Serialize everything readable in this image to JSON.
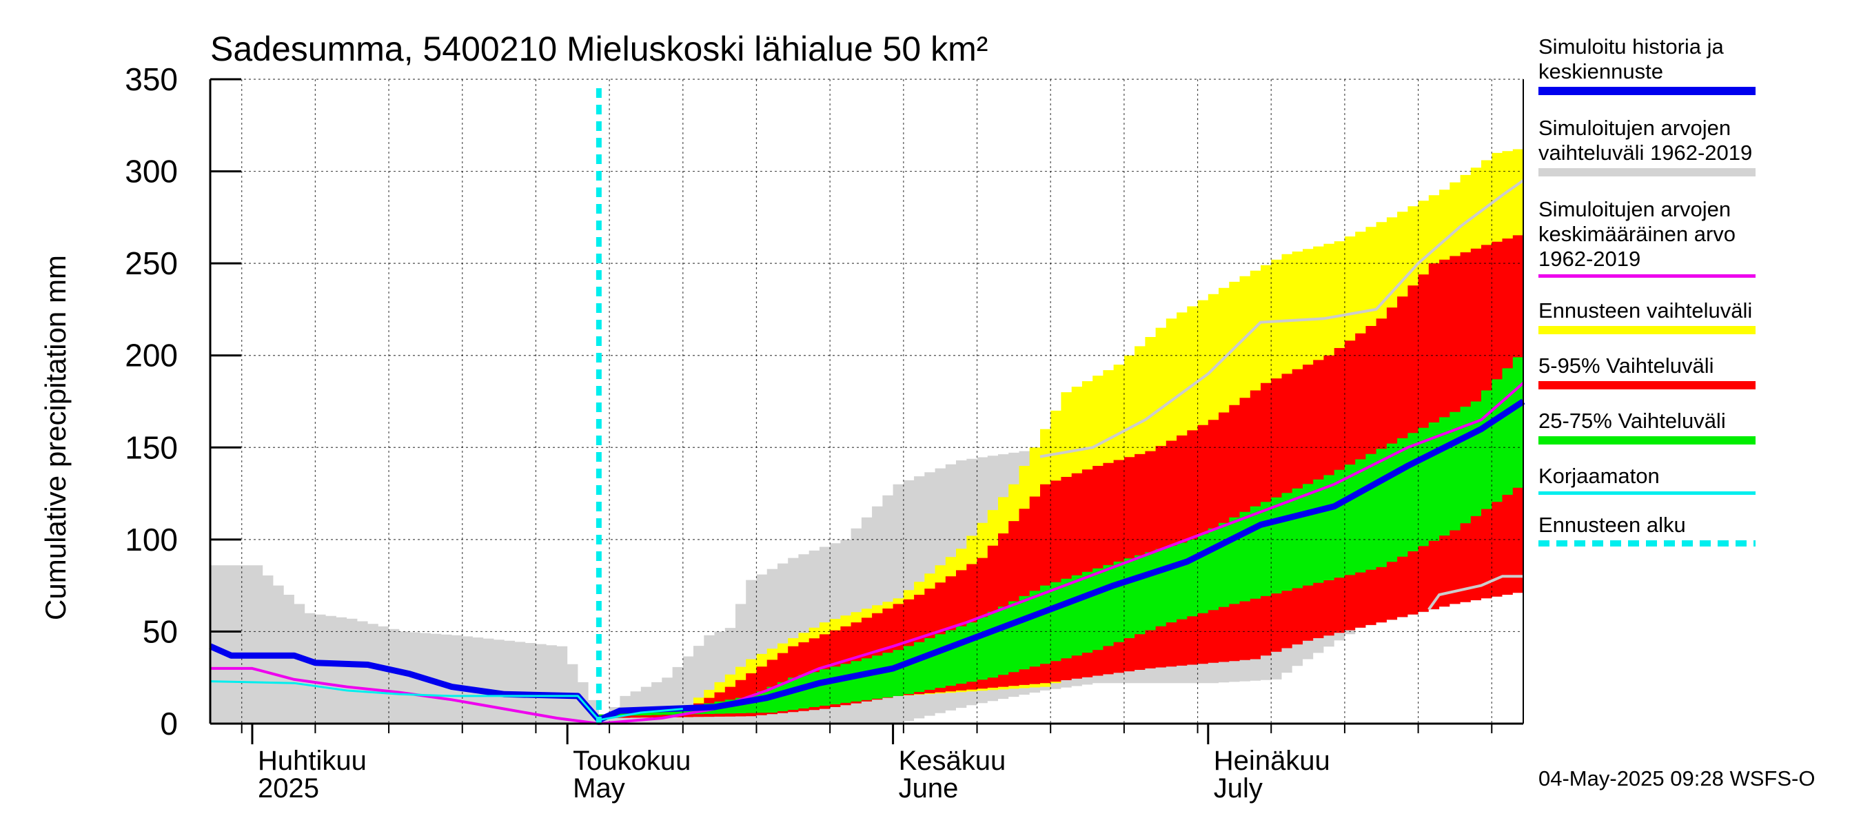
{
  "chart_data": {
    "type": "area",
    "title": "Sadesumma, 5400210 Mieluskoski lähialue 50 km²",
    "ylabel": "Cumulative precipitation   mm",
    "xlabel": "",
    "ylim": [
      0,
      350
    ],
    "yticks": [
      0,
      50,
      100,
      150,
      200,
      250,
      300,
      350
    ],
    "xlim": [
      "2025-03-28",
      "2025-07-31"
    ],
    "month_labels": [
      {
        "fi": "Huhtikuu",
        "en": "2025",
        "date": "2025-04-01"
      },
      {
        "fi": "Toukokuu",
        "en": "May",
        "date": "2025-05-01"
      },
      {
        "fi": "Kesäkuu",
        "en": "June",
        "date": "2025-06-01"
      },
      {
        "fi": "Heinäkuu",
        "en": "July",
        "date": "2025-07-01"
      }
    ],
    "forecast_start": "2025-05-04",
    "grid": true,
    "legend_position": "right",
    "series": [
      {
        "name": "Simuloitujen arvojen vaihteluväli 1962-2019",
        "kind": "band",
        "color": "#d3d3d3",
        "lower": [
          [
            "2025-03-28",
            0
          ],
          [
            "2025-05-04",
            0
          ],
          [
            "2025-06-01",
            0
          ],
          [
            "2025-06-08",
            10
          ],
          [
            "2025-06-15",
            18
          ],
          [
            "2025-06-20",
            22
          ],
          [
            "2025-07-01",
            22
          ],
          [
            "2025-07-07",
            24
          ],
          [
            "2025-07-10",
            35
          ],
          [
            "2025-07-15",
            52
          ],
          [
            "2025-07-22",
            62
          ],
          [
            "2025-07-23",
            70
          ],
          [
            "2025-07-31",
            72
          ]
        ],
        "upper": [
          [
            "2025-03-28",
            86
          ],
          [
            "2025-04-01",
            86
          ],
          [
            "2025-04-03",
            75
          ],
          [
            "2025-04-06",
            60
          ],
          [
            "2025-04-10",
            57
          ],
          [
            "2025-04-15",
            50
          ],
          [
            "2025-04-20",
            48
          ],
          [
            "2025-04-25",
            45
          ],
          [
            "2025-04-30",
            42
          ],
          [
            "2025-05-04",
            3
          ],
          [
            "2025-05-06",
            15
          ],
          [
            "2025-05-10",
            25
          ],
          [
            "2025-05-14",
            48
          ],
          [
            "2025-05-16",
            52
          ],
          [
            "2025-05-18",
            78
          ],
          [
            "2025-05-22",
            90
          ],
          [
            "2025-05-27",
            100
          ],
          [
            "2025-06-01",
            130
          ],
          [
            "2025-06-07",
            143
          ],
          [
            "2025-06-13",
            148
          ],
          [
            "2025-06-20",
            150
          ],
          [
            "2025-06-27",
            165
          ],
          [
            "2025-07-03",
            205
          ],
          [
            "2025-07-08",
            220
          ],
          [
            "2025-07-12",
            222
          ],
          [
            "2025-07-17",
            225
          ],
          [
            "2025-07-21",
            250
          ],
          [
            "2025-07-25",
            275
          ],
          [
            "2025-07-29",
            290
          ],
          [
            "2025-07-31",
            295
          ]
        ]
      },
      {
        "name": "Ennusteen vaihteluväli",
        "kind": "band",
        "color": "#ffff00",
        "lower": [
          [
            "2025-05-04",
            3
          ],
          [
            "2025-05-15",
            4
          ],
          [
            "2025-05-25",
            10
          ],
          [
            "2025-06-01",
            15
          ],
          [
            "2025-06-15",
            20
          ],
          [
            "2025-06-25",
            40
          ],
          [
            "2025-07-05",
            40
          ],
          [
            "2025-07-10",
            50
          ],
          [
            "2025-07-15",
            55
          ],
          [
            "2025-07-20",
            62
          ],
          [
            "2025-07-25",
            68
          ],
          [
            "2025-07-31",
            75
          ]
        ],
        "upper": [
          [
            "2025-05-04",
            5
          ],
          [
            "2025-05-12",
            10
          ],
          [
            "2025-05-18",
            35
          ],
          [
            "2025-05-25",
            55
          ],
          [
            "2025-06-01",
            68
          ],
          [
            "2025-06-07",
            95
          ],
          [
            "2025-06-12",
            130
          ],
          [
            "2025-06-17",
            180
          ],
          [
            "2025-06-22",
            195
          ],
          [
            "2025-06-27",
            220
          ],
          [
            "2025-07-03",
            240
          ],
          [
            "2025-07-08",
            255
          ],
          [
            "2025-07-13",
            262
          ],
          [
            "2025-07-18",
            275
          ],
          [
            "2025-07-23",
            290
          ],
          [
            "2025-07-28",
            310
          ],
          [
            "2025-07-31",
            313
          ]
        ]
      },
      {
        "name": "5-95% Vaihteluväli",
        "kind": "band",
        "color": "#ff0000",
        "lower": [
          [
            "2025-05-04",
            3
          ],
          [
            "2025-05-18",
            4
          ],
          [
            "2025-05-25",
            8
          ],
          [
            "2025-06-01",
            15
          ],
          [
            "2025-06-15",
            22
          ],
          [
            "2025-06-25",
            30
          ],
          [
            "2025-07-05",
            35
          ],
          [
            "2025-07-10",
            45
          ],
          [
            "2025-07-17",
            55
          ],
          [
            "2025-07-24",
            65
          ],
          [
            "2025-07-31",
            72
          ]
        ],
        "upper": [
          [
            "2025-05-04",
            4
          ],
          [
            "2025-05-12",
            8
          ],
          [
            "2025-05-16",
            20
          ],
          [
            "2025-05-22",
            42
          ],
          [
            "2025-05-28",
            55
          ],
          [
            "2025-06-03",
            70
          ],
          [
            "2025-06-09",
            90
          ],
          [
            "2025-06-15",
            130
          ],
          [
            "2025-06-20",
            140
          ],
          [
            "2025-06-25",
            148
          ],
          [
            "2025-07-01",
            165
          ],
          [
            "2025-07-06",
            185
          ],
          [
            "2025-07-12",
            200
          ],
          [
            "2025-07-17",
            220
          ],
          [
            "2025-07-22",
            250
          ],
          [
            "2025-07-27",
            260
          ],
          [
            "2025-07-31",
            267
          ]
        ]
      },
      {
        "name": "25-75% Vaihteluväli",
        "kind": "band",
        "color": "#00ee00",
        "lower": [
          [
            "2025-05-04",
            4
          ],
          [
            "2025-05-20",
            6
          ],
          [
            "2025-06-01",
            15
          ],
          [
            "2025-06-10",
            25
          ],
          [
            "2025-06-20",
            40
          ],
          [
            "2025-06-27",
            55
          ],
          [
            "2025-07-03",
            65
          ],
          [
            "2025-07-10",
            75
          ],
          [
            "2025-07-17",
            85
          ],
          [
            "2025-07-24",
            105
          ],
          [
            "2025-07-31",
            132
          ]
        ],
        "upper": [
          [
            "2025-05-04",
            5
          ],
          [
            "2025-05-12",
            9
          ],
          [
            "2025-05-18",
            15
          ],
          [
            "2025-05-22",
            25
          ],
          [
            "2025-06-01",
            40
          ],
          [
            "2025-06-08",
            55
          ],
          [
            "2025-06-15",
            75
          ],
          [
            "2025-06-22",
            88
          ],
          [
            "2025-06-29",
            100
          ],
          [
            "2025-07-05",
            118
          ],
          [
            "2025-07-12",
            135
          ],
          [
            "2025-07-19",
            155
          ],
          [
            "2025-07-26",
            175
          ],
          [
            "2025-07-31",
            205
          ]
        ]
      },
      {
        "name": "Simuloitujen arvojen keskimääräinen arvo 1962-2019",
        "kind": "line",
        "color": "#ee00ee",
        "width": 4,
        "points": [
          [
            "2025-03-28",
            30
          ],
          [
            "2025-04-01",
            30
          ],
          [
            "2025-04-05",
            24
          ],
          [
            "2025-04-10",
            20
          ],
          [
            "2025-04-15",
            17
          ],
          [
            "2025-04-20",
            13
          ],
          [
            "2025-04-25",
            8
          ],
          [
            "2025-04-30",
            3
          ],
          [
            "2025-05-04",
            0
          ],
          [
            "2025-05-10",
            3
          ],
          [
            "2025-05-15",
            8
          ],
          [
            "2025-05-20",
            18
          ],
          [
            "2025-05-25",
            30
          ],
          [
            "2025-06-01",
            42
          ],
          [
            "2025-06-08",
            55
          ],
          [
            "2025-06-15",
            70
          ],
          [
            "2025-06-22",
            85
          ],
          [
            "2025-06-29",
            100
          ],
          [
            "2025-07-06",
            115
          ],
          [
            "2025-07-13",
            130
          ],
          [
            "2025-07-20",
            150
          ],
          [
            "2025-07-27",
            165
          ],
          [
            "2025-07-31",
            185
          ]
        ]
      },
      {
        "name": "Simuloitu historia ja keskiennuste",
        "kind": "line",
        "color": "#0000ee",
        "width": 9,
        "points": [
          [
            "2025-03-28",
            42
          ],
          [
            "2025-03-30",
            37
          ],
          [
            "2025-04-05",
            37
          ],
          [
            "2025-04-07",
            33
          ],
          [
            "2025-04-12",
            32
          ],
          [
            "2025-04-16",
            27
          ],
          [
            "2025-04-20",
            20
          ],
          [
            "2025-04-25",
            16
          ],
          [
            "2025-05-02",
            15
          ],
          [
            "2025-05-04",
            2
          ],
          [
            "2025-05-06",
            7
          ],
          [
            "2025-05-15",
            9
          ],
          [
            "2025-05-20",
            14
          ],
          [
            "2025-05-25",
            22
          ],
          [
            "2025-06-01",
            30
          ],
          [
            "2025-06-08",
            45
          ],
          [
            "2025-06-15",
            60
          ],
          [
            "2025-06-22",
            75
          ],
          [
            "2025-06-29",
            88
          ],
          [
            "2025-07-06",
            108
          ],
          [
            "2025-07-13",
            118
          ],
          [
            "2025-07-20",
            140
          ],
          [
            "2025-07-27",
            160
          ],
          [
            "2025-07-31",
            175
          ]
        ]
      },
      {
        "name": "Korjaamaton",
        "kind": "line",
        "color": "#00eeee",
        "width": 3,
        "points": [
          [
            "2025-03-28",
            23
          ],
          [
            "2025-04-05",
            22
          ],
          [
            "2025-04-10",
            18
          ],
          [
            "2025-04-15",
            16
          ],
          [
            "2025-04-20",
            15
          ],
          [
            "2025-05-02",
            15
          ],
          [
            "2025-05-04",
            2
          ],
          [
            "2025-05-08",
            6
          ],
          [
            "2025-05-12",
            8
          ]
        ]
      },
      {
        "name": "Simuloitujen arvojen vaihteluväli 1962-2019",
        "kind": "edge-line",
        "color": "#cccccc",
        "width": 4,
        "points": [
          [
            "2025-06-15",
            145
          ],
          [
            "2025-06-20",
            150
          ],
          [
            "2025-06-25",
            165
          ],
          [
            "2025-07-01",
            190
          ],
          [
            "2025-07-06",
            218
          ],
          [
            "2025-07-12",
            220
          ],
          [
            "2025-07-17",
            225
          ],
          [
            "2025-07-21",
            250
          ],
          [
            "2025-07-25",
            270
          ],
          [
            "2025-07-29",
            287
          ],
          [
            "2025-07-31",
            295
          ]
        ]
      },
      {
        "name": "Simuloitujen arvojen vaihteluväli 1962-2019",
        "kind": "edge-line",
        "color": "#cccccc",
        "width": 4,
        "points": [
          [
            "2025-07-22",
            62
          ],
          [
            "2025-07-23",
            70
          ],
          [
            "2025-07-27",
            75
          ],
          [
            "2025-07-29",
            80
          ],
          [
            "2025-07-31",
            80
          ]
        ]
      }
    ]
  },
  "legend": [
    {
      "label": "Simuloitu historia ja\nkeskiennuste",
      "color": "#0000ee",
      "style": "solid"
    },
    {
      "label": "Simuloitujen arvojen\nvaihteluväli 1962-2019",
      "color": "#d3d3d3",
      "style": "solid"
    },
    {
      "label": "Simuloitujen arvojen\nkeskimääräinen arvo\n   1962-2019",
      "color": "#ee00ee",
      "style": "thin"
    },
    {
      "label": "Ennusteen vaihteluväli",
      "color": "#ffff00",
      "style": "solid"
    },
    {
      "label": "5-95% Vaihteluväli",
      "color": "#ff0000",
      "style": "solid"
    },
    {
      "label": "25-75% Vaihteluväli",
      "color": "#00ee00",
      "style": "solid"
    },
    {
      "label": "Korjaamaton",
      "color": "#00eeee",
      "style": "thin"
    },
    {
      "label": "Ennusteen alku",
      "color": "#00eeee",
      "style": "dashed"
    }
  ],
  "footer": "04-May-2025 09:28 WSFS-O"
}
